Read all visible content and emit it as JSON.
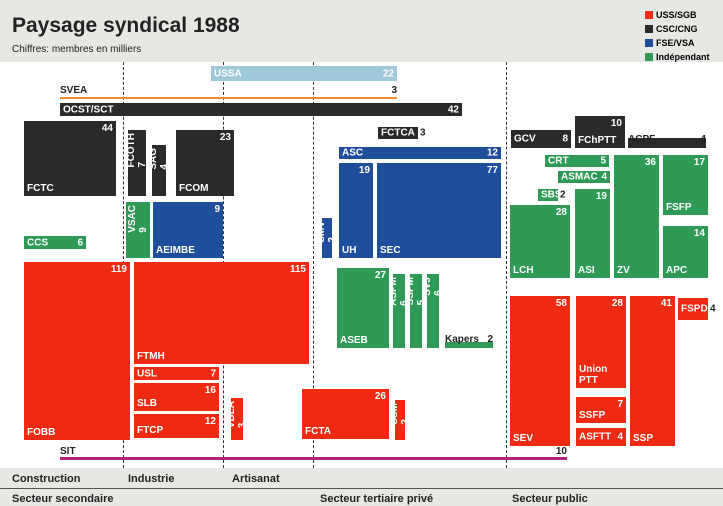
{
  "header": {
    "title": "Paysage syndical 1988",
    "subtitle": "Chiffres: membres en milliers"
  },
  "legend": [
    {
      "name": "USS/SGB",
      "color": "#ee2a12",
      "units": [
        {
          "name": "FOBB",
          "value": 119
        },
        {
          "name": "FTMH",
          "value": 115
        },
        {
          "name": "USL",
          "value": 7
        },
        {
          "name": "SLB",
          "value": 16
        },
        {
          "name": "FTCP",
          "value": 12
        },
        {
          "name": "VBLA",
          "value": 3
        },
        {
          "name": "FCTA",
          "value": 26
        },
        {
          "name": "SSM",
          "value": 2
        },
        {
          "name": "SEV",
          "value": 58
        },
        {
          "name": "Union PTT",
          "value": 28
        },
        {
          "name": "SSFP",
          "value": 7
        },
        {
          "name": "ASFTT",
          "value": 4
        },
        {
          "name": "SSP",
          "value": 41
        },
        {
          "name": "FSPD",
          "value": 4
        }
      ]
    },
    {
      "name": "CSC/CNG",
      "color": "#2a2a2a",
      "units": [
        {
          "name": "FCTC",
          "value": 44
        },
        {
          "name": "FCOTH",
          "value": 7
        },
        {
          "name": "SAG",
          "value": 4
        },
        {
          "name": "FCOM",
          "value": 23
        },
        {
          "name": "FCTCA",
          "value": 3
        },
        {
          "name": "GCV",
          "value": 8
        },
        {
          "name": "FChPTT",
          "value": 10
        },
        {
          "name": "ACPF",
          "value": 4
        },
        {
          "name": "OCST/SCT",
          "value": 42
        }
      ]
    },
    {
      "name": "FSE/VSA",
      "color": "#1f4e9c",
      "units": [
        {
          "name": "AEIMBE",
          "value": 9
        },
        {
          "name": "ASC",
          "value": 12
        },
        {
          "name": "UH",
          "value": 19
        },
        {
          "name": "SEC",
          "value": 77
        },
        {
          "name": "SMV",
          "value": 2
        }
      ]
    },
    {
      "name": "Indépendant",
      "color": "#2e9a56",
      "units": [
        {
          "name": "VSAC",
          "value": 9
        },
        {
          "name": "CCS",
          "value": 6
        },
        {
          "name": "ASEB",
          "value": 27
        },
        {
          "name": "ASPM",
          "value": 6
        },
        {
          "name": "SSPM",
          "value": 5
        },
        {
          "name": "SVJ",
          "value": 6
        },
        {
          "name": "Kapers",
          "value": 2
        },
        {
          "name": "CRT",
          "value": 5
        },
        {
          "name": "ASMAC",
          "value": 4
        },
        {
          "name": "SBS",
          "value": 2
        },
        {
          "name": "LCH",
          "value": 28
        },
        {
          "name": "ASI",
          "value": 19
        },
        {
          "name": "ZV",
          "value": 36
        },
        {
          "name": "FSFP",
          "value": 17
        },
        {
          "name": "APC",
          "value": 14
        }
      ]
    }
  ],
  "others": [
    {
      "name": "USSA",
      "value": 22,
      "color": "#9ec9d9"
    },
    {
      "name": "SVEA",
      "value": 3,
      "color": "#f08a2c"
    },
    {
      "name": "SIT",
      "value": 10,
      "color": "#b0237a"
    }
  ],
  "branches": [
    "Construction",
    "Industrie",
    "Artisanat"
  ],
  "sectors": [
    "Secteur secondaire",
    "Secteur tertiaire privé",
    "Secteur public"
  ]
}
